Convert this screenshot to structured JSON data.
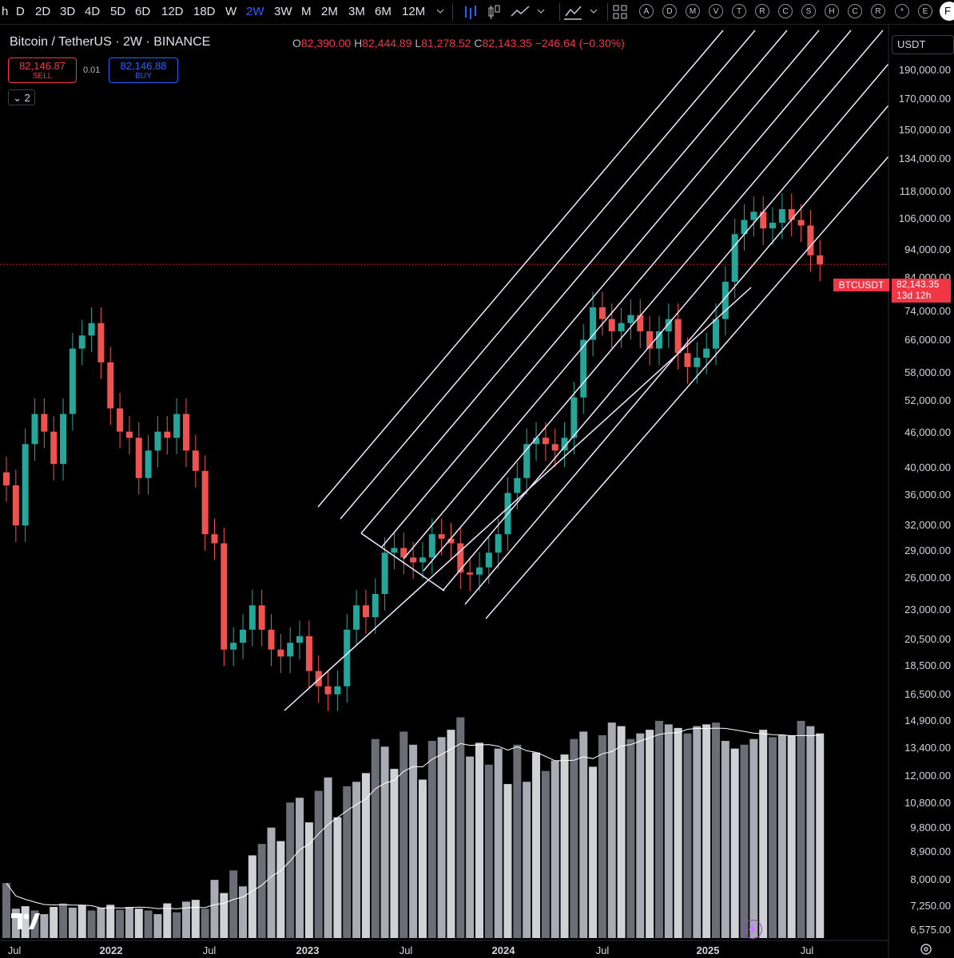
{
  "toolbar": {
    "timeframes": [
      "h",
      "D",
      "2D",
      "3D",
      "4D",
      "5D",
      "6D",
      "12D",
      "18D",
      "W",
      "2W",
      "3W",
      "M",
      "2M",
      "3M",
      "6M",
      "12M"
    ],
    "active_timeframe": "2W",
    "indicator_badges": [
      "A",
      "D",
      "M",
      "V",
      "T",
      "R",
      "C",
      "S",
      "H",
      "C",
      "R",
      "*",
      "E"
    ],
    "corner_letter": "F"
  },
  "header": {
    "title": "Bitcoin / TetherUS · 2W · BINANCE",
    "ohlc": {
      "o_label": "O",
      "o": "82,390.00",
      "h_label": "H",
      "h": "82,444.89",
      "l_label": "L",
      "l": "81,278.52",
      "c_label": "C",
      "c": "82,143.35",
      "change": "−246.64 (−0.30%)"
    }
  },
  "trade": {
    "sell_price": "82,146.87",
    "sell_label": "SELL",
    "spread": "0.01",
    "buy_price": "82,146.88",
    "buy_label": "BUY"
  },
  "indicators_toggle": "2",
  "currency": "USDT",
  "last_price": {
    "symbol": "BTCUSDT",
    "price": "82,143.35",
    "countdown": "13d 12h",
    "color": "#f23645"
  },
  "colors": {
    "up": "#26a69a",
    "down": "#ef5350",
    "background": "#000000",
    "channel": "#f3e8ff",
    "volume_ma": "#ffffff"
  },
  "chart_data": {
    "type": "candlestick",
    "symbol": "BTCUSDT",
    "interval": "2W",
    "scale": "log",
    "price_axis_labels": [
      "190,000.00",
      "170,000.00",
      "150,000.00",
      "134,000.00",
      "118,000.00",
      "106,000.00",
      "94,000.00",
      "84,000.00",
      "74,000.00",
      "66,000.00",
      "58,000.00",
      "52,000.00",
      "46,000.00",
      "40,000.00",
      "36,000.00",
      "32,000.00",
      "29,000.00",
      "26,000.00",
      "23,000.00",
      "20,500.00",
      "18,500.00",
      "16,500.00",
      "14,900.00",
      "13,400.00",
      "12,000.00",
      "10,800.00",
      "9,800.00",
      "8,900.00",
      "8,000.00",
      "7,250.00",
      "6,575.00"
    ],
    "time_axis_labels": [
      "Jul",
      "2022",
      "Jul",
      "2023",
      "Jul",
      "2024",
      "Jul",
      "2025",
      "Jul"
    ],
    "close_series": [
      36000,
      31000,
      42000,
      47000,
      44000,
      39000,
      47000,
      60000,
      63000,
      66000,
      57000,
      48000,
      44000,
      43000,
      37000,
      41000,
      44000,
      43000,
      47000,
      41000,
      38000,
      30000,
      29000,
      19500,
      20000,
      21000,
      23000,
      21000,
      19500,
      19000,
      20000,
      20500,
      18000,
      17000,
      16500,
      17000,
      21000,
      23000,
      22000,
      24000,
      28000,
      28500,
      27500,
      27000,
      27500,
      30000,
      29500,
      29000,
      26000,
      25800,
      26500,
      28000,
      30000,
      35000,
      37000,
      42000,
      43000,
      42000,
      41000,
      43000,
      50000,
      62000,
      70000,
      67000,
      64000,
      66000,
      68000,
      64000,
      60000,
      64000,
      67000,
      59000,
      56000,
      58000,
      60000,
      67000,
      77000,
      92000,
      97000,
      100000,
      94000,
      96000,
      101000,
      97000,
      95000,
      85000,
      82143
    ],
    "volume_series": [
      8100,
      7350,
      7420,
      7300,
      7200,
      7400,
      7500,
      7380,
      7450,
      7300,
      7380,
      7460,
      7320,
      7400,
      7350,
      7300,
      7200,
      7500,
      7250,
      7550,
      7600,
      7350,
      8200,
      7800,
      8500,
      8000,
      9000,
      9400,
      10000,
      9500,
      11000,
      11200,
      10200,
      11500,
      12100,
      10400,
      11700,
      11900,
      12300,
      14000,
      13600,
      12500,
      14400,
      13700,
      12000,
      13900,
      14100,
      14500,
      15200,
      13100,
      13800,
      12700,
      13500,
      11800,
      13700,
      11900,
      13300,
      12400,
      12900,
      13200,
      14000,
      14400,
      12600,
      14200,
      14900,
      14700,
      14000,
      14300,
      14500,
      15000,
      14800,
      14600,
      14300,
      14700,
      14800,
      14900,
      13900,
      13500,
      13700,
      14000,
      14500,
      14100,
      14200,
      14200,
      15000,
      14700,
      14300
    ],
    "volume_ma_label": "",
    "channel": "parallel pitchfork-style channel, 8 parallel lines"
  }
}
